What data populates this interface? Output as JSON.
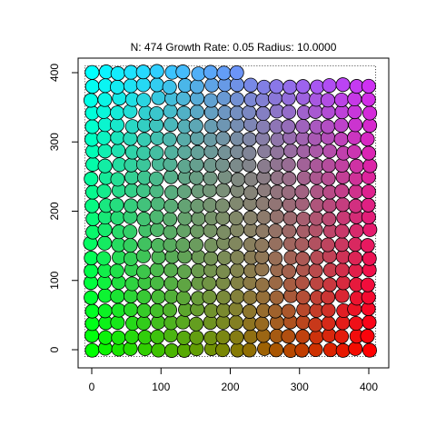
{
  "chart_data": {
    "type": "scatter",
    "title": "N: 474 Growth Rate: 0.05 Radius: 10.0000",
    "xlabel": "",
    "ylabel": "",
    "xlim": [
      -10,
      410
    ],
    "ylim": [
      -10,
      410
    ],
    "x_ticks": [
      0,
      100,
      200,
      300,
      400
    ],
    "y_ticks": [
      0,
      100,
      200,
      300,
      400
    ],
    "grid": false,
    "legend": "none",
    "point_radius": 10,
    "n_points": 474,
    "bbox_dotted": [
      -10,
      410,
      -10,
      410
    ],
    "color_anchors": {
      "top_left": "#00ffff",
      "top_right": "#cc33ff",
      "bottom_left": "#00ff00",
      "bottom_right": "#ff0000",
      "center": "#8a8a5a"
    }
  }
}
